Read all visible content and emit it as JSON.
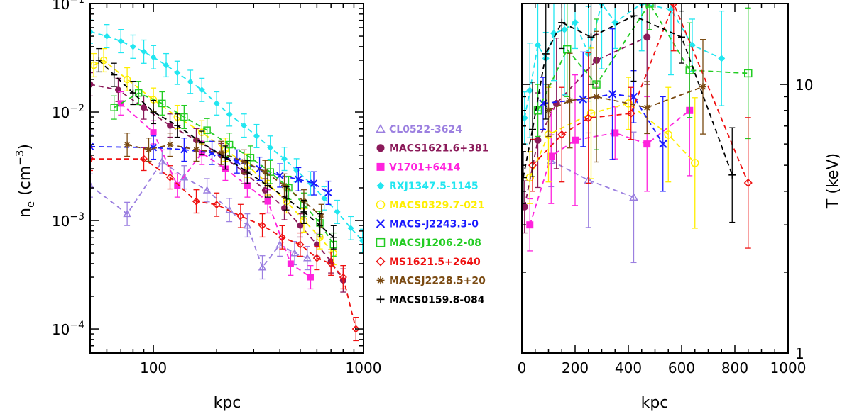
{
  "chart_data": [
    {
      "type": "scatter",
      "panel": "left",
      "xscale": "log",
      "yscale": "log",
      "xlim": [
        50,
        1000
      ],
      "ylim": [
        6e-05,
        0.1
      ],
      "xticks": [
        {
          "v": 100,
          "label": "100"
        },
        {
          "v": 1000,
          "label": "1000"
        }
      ],
      "yticks": [
        {
          "v": 0.1,
          "base": "10",
          "exp": "−1"
        },
        {
          "v": 0.01,
          "base": "10",
          "exp": "−2"
        },
        {
          "v": 0.001,
          "base": "10",
          "exp": "−3"
        },
        {
          "v": 0.0001,
          "base": "10",
          "exp": "−4"
        }
      ],
      "xlabel": "kpc",
      "ylabel": {
        "main": "n",
        "sub": "e",
        "unit": "(cm",
        "unit_exp": "−3",
        "close": ")"
      },
      "series": [
        {
          "name": "CL0522-3624",
          "x": [
            50,
            75,
            110,
            140,
            180,
            230,
            280,
            330,
            400,
            470,
            540
          ],
          "y": [
            0.0021,
            0.00115,
            0.0035,
            0.0025,
            0.0019,
            0.00125,
            0.0009,
            0.00037,
            0.0006,
            0.0005,
            0.00045
          ]
        },
        {
          "name": "MACS1621.6+381",
          "x": [
            50,
            68,
            90,
            120,
            160,
            210,
            270,
            340,
            420,
            500,
            600,
            700,
            800
          ],
          "y": [
            0.018,
            0.016,
            0.011,
            0.0075,
            0.0055,
            0.004,
            0.0028,
            0.0019,
            0.0013,
            0.0009,
            0.0006,
            0.00042,
            0.00028
          ]
        },
        {
          "name": "V1701+6414",
          "x": [
            70,
            100,
            130,
            170,
            220,
            280,
            350,
            450,
            560
          ],
          "y": [
            0.012,
            0.0065,
            0.0021,
            0.0042,
            0.003,
            0.0021,
            0.0015,
            0.0004,
            0.0003
          ]
        },
        {
          "name": "RXJ1347.5-1145",
          "x": [
            50,
            60,
            70,
            80,
            90,
            100,
            115,
            130,
            150,
            170,
            200,
            230,
            270,
            310,
            360,
            420,
            480,
            560,
            650,
            750,
            870,
            990
          ],
          "y": [
            0.055,
            0.05,
            0.045,
            0.04,
            0.036,
            0.032,
            0.027,
            0.023,
            0.019,
            0.016,
            0.012,
            0.0095,
            0.0075,
            0.006,
            0.0047,
            0.0037,
            0.0029,
            0.0022,
            0.0016,
            0.0012,
            0.00085,
            0.00065
          ]
        },
        {
          "name": "MACS0329.7-021",
          "x": [
            52,
            58,
            75,
            100,
            130,
            170,
            220,
            280,
            350,
            430,
            520,
            620,
            720
          ],
          "y": [
            0.027,
            0.03,
            0.02,
            0.013,
            0.009,
            0.0065,
            0.0045,
            0.0032,
            0.0022,
            0.0015,
            0.001,
            0.0007,
            0.0005
          ]
        },
        {
          "name": "MACS-J2243.3-0",
          "x": [
            50,
            100,
            140,
            190,
            250,
            320,
            400,
            490,
            580,
            680
          ],
          "y": [
            0.0048,
            0.0047,
            0.0045,
            0.0042,
            0.0035,
            0.003,
            0.0026,
            0.0024,
            0.0022,
            0.0018
          ]
        },
        {
          "name": "MACSJ1206.2-08",
          "x": [
            65,
            85,
            110,
            140,
            180,
            230,
            290,
            360,
            440,
            520,
            620,
            720
          ],
          "y": [
            0.011,
            0.015,
            0.012,
            0.009,
            0.0068,
            0.005,
            0.0038,
            0.0028,
            0.002,
            0.0014,
            0.00095,
            0.0006
          ]
        },
        {
          "name": "MS1621.5+2640",
          "x": [
            50,
            90,
            120,
            160,
            200,
            260,
            330,
            410,
            500,
            600,
            700,
            800,
            920
          ],
          "y": [
            0.0037,
            0.0037,
            0.0025,
            0.0015,
            0.0014,
            0.0011,
            0.0009,
            0.0007,
            0.0006,
            0.00045,
            0.0004,
            0.0003,
            0.0001
          ]
        },
        {
          "name": "MACSJ2228.5+20",
          "x": [
            75,
            95,
            120,
            160,
            210,
            270,
            340,
            420,
            520,
            630
          ],
          "y": [
            0.005,
            0.0045,
            0.005,
            0.0045,
            0.0042,
            0.0035,
            0.0028,
            0.0021,
            0.0015,
            0.0011
          ]
        },
        {
          "name": "MACS0159.8-084",
          "x": [
            55,
            65,
            80,
            100,
            130,
            170,
            220,
            280,
            350,
            430,
            520,
            620,
            720
          ],
          "y": [
            0.03,
            0.022,
            0.015,
            0.01,
            0.0075,
            0.0052,
            0.0038,
            0.0028,
            0.0021,
            0.0016,
            0.0012,
            0.0009,
            0.0007
          ]
        }
      ]
    },
    {
      "type": "line",
      "panel": "right",
      "xscale": "linear",
      "yscale": "log",
      "xlim": [
        0,
        1000
      ],
      "ylim": [
        1,
        20
      ],
      "xticks": [
        {
          "v": 0,
          "label": "0"
        },
        {
          "v": 200,
          "label": "200"
        },
        {
          "v": 400,
          "label": "400"
        },
        {
          "v": 600,
          "label": "600"
        },
        {
          "v": 800,
          "label": "800"
        },
        {
          "v": 1000,
          "label": "1000"
        }
      ],
      "yticks": [
        {
          "v": 10,
          "label": "10"
        },
        {
          "v": 1,
          "label": "1"
        }
      ],
      "xlabel": "kpc",
      "ylabel": "T (keV)",
      "series": [
        {
          "name": "CL0522-3624",
          "x": [
            110,
            250,
            420
          ],
          "y": [
            5.2,
            4.4,
            3.8
          ]
        },
        {
          "name": "MACS1621.6+381",
          "x": [
            10,
            60,
            130,
            280,
            470
          ],
          "y": [
            3.5,
            6.2,
            8.5,
            12.3,
            15.0
          ]
        },
        {
          "name": "V1701+6414",
          "x": [
            30,
            110,
            200,
            350,
            470,
            630
          ],
          "y": [
            3.0,
            5.4,
            6.2,
            6.6,
            6.0,
            8.0
          ]
        },
        {
          "name": "RXJ1347.5-1145",
          "x": [
            10,
            30,
            60,
            90,
            120,
            160,
            200,
            250,
            300,
            350,
            450,
            560,
            640,
            750
          ],
          "y": [
            7.5,
            9.5,
            14.0,
            12.5,
            15.5,
            16.0,
            17.0,
            13.0,
            20.0,
            17.0,
            20.0,
            19.0,
            14.0,
            12.5
          ]
        },
        {
          "name": "MACS0329.7-021",
          "x": [
            30,
            100,
            260,
            400,
            550,
            650
          ],
          "y": [
            4.5,
            6.5,
            7.8,
            8.5,
            6.5,
            5.1
          ]
        },
        {
          "name": "MACS-J2243.3-0",
          "x": [
            80,
            230,
            340,
            420,
            530
          ],
          "y": [
            8.5,
            8.8,
            9.2,
            9.0,
            6.0
          ]
        },
        {
          "name": "MACSJ1206.2-08",
          "x": [
            60,
            170,
            280,
            480,
            630,
            850
          ],
          "y": [
            8.0,
            13.5,
            10.0,
            20.0,
            11.3,
            11.0
          ]
        },
        {
          "name": "MS1621.5+2640",
          "x": [
            40,
            150,
            250,
            410,
            570,
            850
          ],
          "y": [
            5.0,
            6.5,
            7.5,
            7.8,
            20.0,
            4.3
          ]
        },
        {
          "name": "MACSJ2228.5+20",
          "x": [
            100,
            180,
            280,
            470,
            680
          ],
          "y": [
            8.0,
            8.7,
            9.0,
            8.2,
            9.8
          ]
        },
        {
          "name": "MACS0159.8-084",
          "x": [
            5,
            40,
            90,
            150,
            260,
            420,
            600,
            790
          ],
          "y": [
            4.5,
            6.8,
            13.0,
            17.0,
            15.0,
            18.0,
            15.0,
            4.6
          ]
        }
      ]
    }
  ],
  "legend": {
    "placement": "between panels",
    "items": [
      {
        "label": "CL0522-3624",
        "color": "#9b7fe0",
        "marker": "triangle"
      },
      {
        "label": "MACS1621.6+381",
        "color": "#8b1a5a",
        "marker": "circle-filled"
      },
      {
        "label": "V1701+6414",
        "color": "#ff22dd",
        "marker": "square-filled"
      },
      {
        "label": "RXJ1347.5-1145",
        "color": "#22e6f0",
        "marker": "diamond-filled"
      },
      {
        "label": "MACS0329.7-021",
        "color": "#ffee00",
        "marker": "circle-open"
      },
      {
        "label": "MACS-J2243.3-0",
        "color": "#1a1aff",
        "marker": "x"
      },
      {
        "label": "MACSJ1206.2-08",
        "color": "#22cc22",
        "marker": "square-open"
      },
      {
        "label": "MS1621.5+2640",
        "color": "#ee1111",
        "marker": "diamond-open"
      },
      {
        "label": "MACSJ2228.5+20",
        "color": "#7a4a12",
        "marker": "asterisk"
      },
      {
        "label": "MACS0159.8-084",
        "color": "#000000",
        "marker": "plus"
      }
    ]
  }
}
